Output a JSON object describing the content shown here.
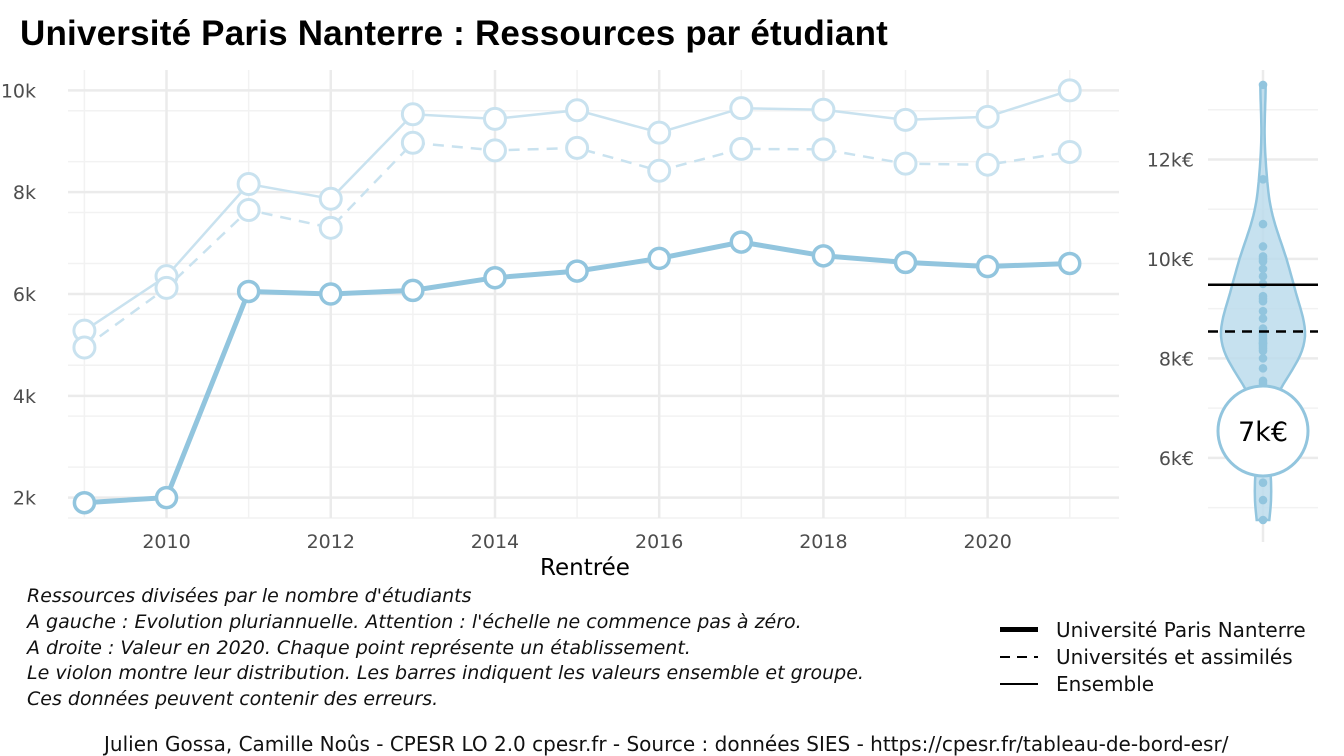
{
  "title": "Université Paris Nanterre  :  Ressources par étudiant",
  "notes": [
    "Ressources divisées par le nombre d'étudiants",
    "A gauche : Evolution pluriannuelle. Attention : l'échelle ne commence pas à zéro.",
    "A droite : Valeur en 2020. Chaque point représente un établissement.",
    "Le violon montre leur distribution. Les barres indiquent les valeurs ensemble et groupe.",
    "Ces données peuvent contenir des erreurs."
  ],
  "legend": [
    {
      "label": "Université Paris Nanterre",
      "style": "thick"
    },
    {
      "label": "Universités et assimilés",
      "style": "dashed"
    },
    {
      "label": "Ensemble",
      "style": "solid"
    }
  ],
  "credits": "Julien Gossa, Camille Noûs - CPESR LO 2.0 cpesr.fr - Source : données SIES - https://cpesr.fr/tableau-de-bord-esr/",
  "colors": {
    "main": "#92c5de",
    "light": "#c9e2ef",
    "grid": "#ebebeb",
    "violin_fill": "#bcdcec",
    "violin_stroke": "#92c5de"
  },
  "chart_data": [
    {
      "type": "line",
      "xlabel": "Rentrée",
      "ylabel": "",
      "xlim": [
        2008.8,
        2021.6
      ],
      "ylim": [
        1600,
        10400
      ],
      "x_ticks": [
        2010,
        2012,
        2014,
        2016,
        2018,
        2020
      ],
      "y_ticks": [
        2000,
        4000,
        6000,
        8000,
        10000
      ],
      "y_tick_labels": [
        "2k",
        "4k",
        "6k",
        "8k",
        "10k"
      ],
      "grid": true,
      "x": [
        2009,
        2010,
        2011,
        2012,
        2013,
        2014,
        2015,
        2016,
        2017,
        2018,
        2019,
        2020,
        2021
      ],
      "series": [
        {
          "name": "Université Paris Nanterre",
          "style": "thick",
          "values": [
            1900,
            2000,
            6050,
            6000,
            6070,
            6320,
            6450,
            6700,
            7020,
            6750,
            6620,
            6540,
            6600
          ]
        },
        {
          "name": "Universités et assimilés",
          "style": "dashed",
          "values": [
            4950,
            6120,
            7650,
            7300,
            8970,
            8820,
            8870,
            8420,
            8850,
            8840,
            8560,
            8540,
            8790
          ]
        },
        {
          "name": "Ensemble",
          "style": "solid",
          "values": [
            5280,
            6350,
            8160,
            7870,
            9530,
            9440,
            9610,
            9170,
            9650,
            9620,
            9420,
            9480,
            10000
          ]
        }
      ]
    },
    {
      "type": "scatter",
      "title": "",
      "xlabel": "",
      "ylabel": "",
      "ylim": [
        4750,
        14000
      ],
      "y_ticks": [
        6000,
        8000,
        10000,
        12000
      ],
      "y_tick_labels": [
        "6k€",
        "8k€",
        "10k€",
        "12k€"
      ],
      "grid": true,
      "year": 2020,
      "points": [
        13500,
        11600,
        10700,
        10250,
        10050,
        10000,
        9950,
        9800,
        9650,
        9500,
        9250,
        9200,
        9150,
        8950,
        8800,
        8600,
        8550,
        8500,
        8450,
        8400,
        8350,
        8300,
        8300,
        8250,
        8200,
        8150,
        8000,
        7800,
        7550,
        7500,
        5950,
        5500,
        5150,
        4750
      ],
      "reference_lines": [
        {
          "name": "Ensemble",
          "value": 9480,
          "style": "solid"
        },
        {
          "name": "Universités et assimilés",
          "value": 8540,
          "style": "dashed"
        }
      ],
      "highlight": {
        "name": "Université Paris Nanterre",
        "value": 6540,
        "label": "7k€"
      }
    }
  ]
}
